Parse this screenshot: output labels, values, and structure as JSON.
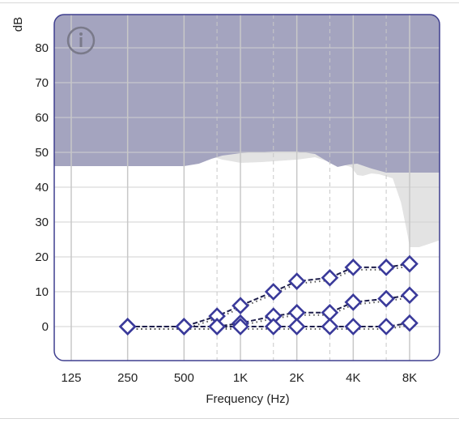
{
  "chart_data": {
    "type": "line",
    "title": "",
    "xlabel": "Frequency (Hz)",
    "ylabel": "dB",
    "x_ticks": [
      "125",
      "250",
      "500",
      "1K",
      "2K",
      "4K",
      "8K"
    ],
    "y_ticks": [
      "0",
      "10",
      "20",
      "30",
      "40",
      "50",
      "60",
      "70",
      "80"
    ],
    "ylim": [
      -10,
      90
    ],
    "x_scale": "log",
    "grid": true,
    "info_icon": "info-icon",
    "colors": {
      "region": "#a4a4bf",
      "secondary_region": "#e3e3e3",
      "frame": "#3f3f8f",
      "marker": "#3a3a9a",
      "line": "#1d1d4a"
    },
    "x": [
      250,
      500,
      750,
      1000,
      1500,
      2000,
      3000,
      4000,
      6000,
      8000
    ],
    "series": [
      {
        "values": [
          0,
          0,
          3,
          6,
          10,
          13,
          14,
          17,
          17,
          18
        ]
      },
      {
        "values": [
          0,
          0,
          0,
          1,
          3,
          4,
          4,
          7,
          8,
          9
        ]
      },
      {
        "values": [
          0,
          0,
          0,
          0,
          0,
          0,
          0,
          0,
          0,
          1
        ]
      }
    ]
  }
}
